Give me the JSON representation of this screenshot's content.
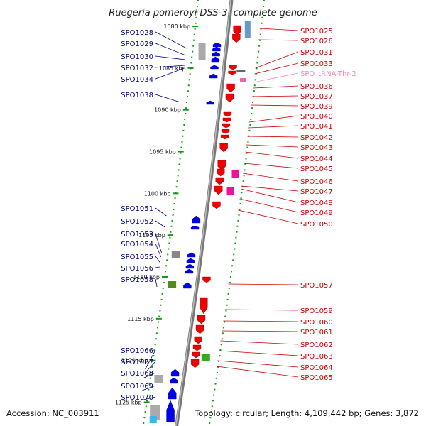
{
  "title": "Ruegeria pomeroyi DSS-3, complete genome",
  "footer": {
    "accession": "Accession: NC_003911",
    "summary": "Topology: circular; Length: 4,109,442 bp; Genes: 3,872"
  },
  "colors": {
    "forward": "#0000ee",
    "reverse": "#ee0000",
    "trna": "#ee66aa",
    "label_blue": "#000080",
    "label_red": "#cc0000",
    "label_pink": "#ee88bb",
    "magenta": "#ee1199",
    "green": "#33aa22",
    "grey": "#999999",
    "tick_green": "#119911"
  },
  "ticks": [
    {
      "label": "1080 kbp",
      "kb": 1080
    },
    {
      "label": "1085 kbp",
      "kb": 1085
    },
    {
      "label": "1090 kbp",
      "kb": 1090
    },
    {
      "label": "1095 kbp",
      "kb": 1095
    },
    {
      "label": "1100 kbp",
      "kb": 1100
    },
    {
      "label": "1105 kbp",
      "kb": 1105
    },
    {
      "label": "1110 kbp",
      "kb": 1110
    },
    {
      "label": "1115 kbp",
      "kb": 1115
    },
    {
      "label": "1120 kbp",
      "kb": 1120
    },
    {
      "label": "1125 kbp",
      "kb": 1125
    }
  ],
  "left_genes": [
    {
      "name": "SPO1028",
      "kb": 1078.6
    },
    {
      "name": "SPO1029",
      "kb": 1079.4
    },
    {
      "name": "SPO1030",
      "kb": 1080.2
    },
    {
      "name": "SPO1032",
      "kb": 1081.5
    },
    {
      "name": "SPO1034",
      "kb": 1082.5
    },
    {
      "name": "SPO1038",
      "kb": 1086.0
    },
    {
      "name": "SPO1051",
      "kb": 1101.0
    },
    {
      "name": "SPO1052",
      "kb": 1102.2
    },
    {
      "name": "SPO1053",
      "kb": 1104.0
    },
    {
      "name": "SPO1054",
      "kb": 1105.4
    },
    {
      "name": "SPO1055",
      "kb": 1105.9
    },
    {
      "name": "SPO1056",
      "kb": 1106.6
    },
    {
      "name": "SPO1058",
      "kb": 1110.0
    },
    {
      "name": "SPO1066",
      "kb": 1121.2
    },
    {
      "name": "SPO1067",
      "kb": 1121.9
    },
    {
      "name": "SPO1068",
      "kb": 1122.7
    },
    {
      "name": "SPO1069",
      "kb": 1124.2
    },
    {
      "name": "SPO1070",
      "kb": 1125.2
    }
  ],
  "right_genes": [
    {
      "name": "SPO1025",
      "kb": 1077.0,
      "type": "cds"
    },
    {
      "name": "SPO1026",
      "kb": 1077.8,
      "type": "cds"
    },
    {
      "name": "SPO1031",
      "kb": 1081.0,
      "type": "cds"
    },
    {
      "name": "SPO1033",
      "kb": 1081.9,
      "type": "cds"
    },
    {
      "name": "SPO_tRNA-Thr-2",
      "kb": 1082.8,
      "type": "trna"
    },
    {
      "name": "SPO1036",
      "kb": 1083.6,
      "type": "cds"
    },
    {
      "name": "SPO1037",
      "kb": 1084.4,
      "type": "cds"
    },
    {
      "name": "SPO1039",
      "kb": 1085.2,
      "type": "cds"
    },
    {
      "name": "SPO1040",
      "kb": 1086.0,
      "type": "cds"
    },
    {
      "name": "SPO1041",
      "kb": 1086.9,
      "type": "cds"
    },
    {
      "name": "SPO1042",
      "kb": 1087.8,
      "type": "cds"
    },
    {
      "name": "SPO1043",
      "kb": 1088.8,
      "type": "cds"
    },
    {
      "name": "SPO1044",
      "kb": 1089.7,
      "type": "cds"
    },
    {
      "name": "SPO1045",
      "kb": 1090.6,
      "type": "cds"
    },
    {
      "name": "SPO1046",
      "kb": 1091.6,
      "type": "cds"
    },
    {
      "name": "SPO1047",
      "kb": 1092.5,
      "type": "cds"
    },
    {
      "name": "SPO1048",
      "kb": 1093.4,
      "type": "cds"
    },
    {
      "name": "SPO1049",
      "kb": 1094.4,
      "type": "cds"
    },
    {
      "name": "SPO1050",
      "kb": 1095.3,
      "type": "cds"
    },
    {
      "name": "SPO1057",
      "kb": 1110.3,
      "type": "cds"
    },
    {
      "name": "SPO1059",
      "kb": 1112.6,
      "type": "cds"
    },
    {
      "name": "SPO1060",
      "kb": 1113.5,
      "type": "cds"
    },
    {
      "name": "SPO1061",
      "kb": 1114.4,
      "type": "cds"
    },
    {
      "name": "SPO1062",
      "kb": 1115.3,
      "type": "cds"
    },
    {
      "name": "SPO1063",
      "kb": 1116.2,
      "type": "cds"
    },
    {
      "name": "SPO1064",
      "kb": 1117.2,
      "type": "cds"
    },
    {
      "name": "SPO1065",
      "kb": 1118.1,
      "type": "cds"
    }
  ]
}
